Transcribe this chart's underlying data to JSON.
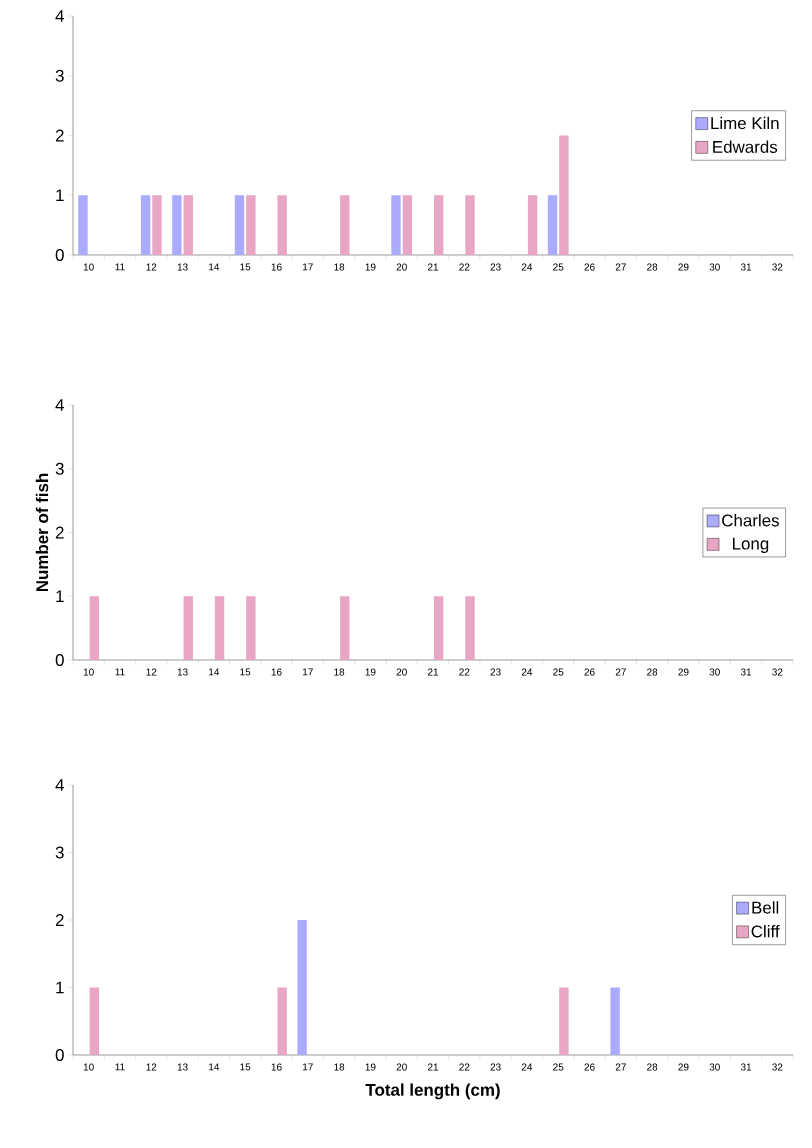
{
  "chart_data": [
    {
      "type": "bar",
      "categories": [
        "10",
        "11",
        "12",
        "13",
        "14",
        "15",
        "16",
        "17",
        "18",
        "19",
        "20",
        "21",
        "22",
        "23",
        "24",
        "25",
        "26",
        "27",
        "28",
        "29",
        "30",
        "31",
        "32"
      ],
      "ylim": [
        0,
        4
      ],
      "yticks": [
        0,
        1,
        2,
        3,
        4
      ],
      "legend": "right",
      "series": [
        {
          "name": "Lime Kiln",
          "color": "#aaaaff",
          "values": [
            1,
            0,
            1,
            1,
            0,
            1,
            0,
            0,
            0,
            0,
            1,
            0,
            0,
            0,
            0,
            1,
            0,
            0,
            0,
            0,
            0,
            0,
            0
          ]
        },
        {
          "name": "Edwards",
          "color": "#e8a6c4",
          "values": [
            0,
            0,
            1,
            1,
            0,
            1,
            1,
            0,
            1,
            0,
            1,
            1,
            1,
            0,
            1,
            2,
            0,
            0,
            0,
            0,
            0,
            0,
            0
          ]
        }
      ]
    },
    {
      "type": "bar",
      "categories": [
        "10",
        "11",
        "12",
        "13",
        "14",
        "15",
        "16",
        "17",
        "18",
        "19",
        "20",
        "21",
        "22",
        "23",
        "24",
        "25",
        "26",
        "27",
        "28",
        "29",
        "30",
        "31",
        "32"
      ],
      "ylim": [
        0,
        4
      ],
      "yticks": [
        0,
        1,
        2,
        3,
        4
      ],
      "legend": "right",
      "ylabel": "Number  of  fish",
      "series": [
        {
          "name": "Charles",
          "color": "#aaaaff",
          "values": [
            0,
            0,
            0,
            0,
            0,
            0,
            0,
            0,
            0,
            0,
            0,
            0,
            0,
            0,
            0,
            0,
            0,
            0,
            0,
            0,
            0,
            0,
            0
          ]
        },
        {
          "name": "Long",
          "color": "#e8a6c4",
          "values": [
            1,
            0,
            0,
            1,
            1,
            1,
            0,
            0,
            1,
            0,
            0,
            1,
            1,
            0,
            0,
            0,
            0,
            0,
            0,
            0,
            0,
            0,
            0
          ]
        }
      ]
    },
    {
      "type": "bar",
      "categories": [
        "10",
        "11",
        "12",
        "13",
        "14",
        "15",
        "16",
        "17",
        "18",
        "19",
        "20",
        "21",
        "22",
        "23",
        "24",
        "25",
        "26",
        "27",
        "28",
        "29",
        "30",
        "31",
        "32"
      ],
      "ylim": [
        0,
        4
      ],
      "yticks": [
        0,
        1,
        2,
        3,
        4
      ],
      "legend": "right",
      "xlabel": "Total length (cm)",
      "series": [
        {
          "name": "Bell",
          "color": "#aaaaff",
          "values": [
            0,
            0,
            0,
            0,
            0,
            0,
            0,
            2,
            0,
            0,
            0,
            0,
            0,
            0,
            0,
            0,
            0,
            1,
            0,
            0,
            0,
            0,
            0
          ]
        },
        {
          "name": "Cliff",
          "color": "#e8a6c4",
          "values": [
            1,
            0,
            0,
            0,
            0,
            0,
            1,
            0,
            0,
            0,
            0,
            0,
            0,
            0,
            0,
            1,
            0,
            0,
            0,
            0,
            0,
            0,
            0
          ]
        }
      ]
    }
  ]
}
